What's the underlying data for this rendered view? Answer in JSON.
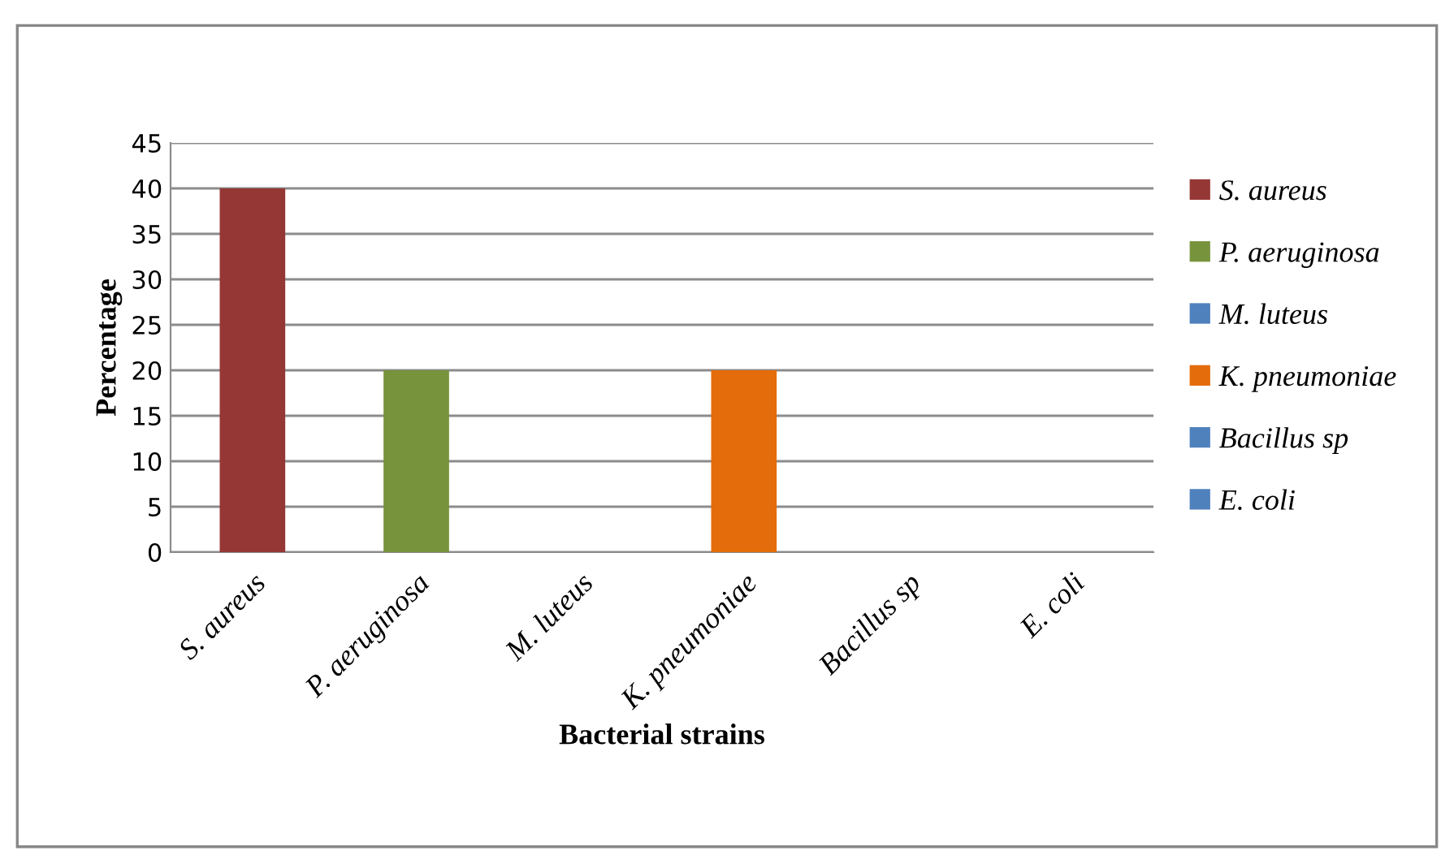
{
  "chart_data": {
    "type": "bar",
    "xlabel": "Bacterial strains",
    "ylabel": "Percentage",
    "categories": [
      "S. aureus",
      "P. aeruginosa",
      "M. luteus",
      "K. pneumoniae",
      "Bacillus sp",
      "E. coli"
    ],
    "series": [
      {
        "name": "S. aureus",
        "color": "#953735",
        "values": [
          40,
          null,
          null,
          null,
          null,
          null
        ]
      },
      {
        "name": "P. aeruginosa",
        "color": "#77933c",
        "values": [
          null,
          20,
          null,
          null,
          null,
          null
        ]
      },
      {
        "name": "M. luteus",
        "color": "#4f81bd",
        "values": [
          null,
          null,
          0,
          null,
          null,
          null
        ]
      },
      {
        "name": "K. pneumoniae",
        "color": "#e46c0a",
        "values": [
          null,
          null,
          null,
          20,
          null,
          null
        ]
      },
      {
        "name": "Bacillus sp",
        "color": "#4f81bd",
        "values": [
          null,
          null,
          null,
          null,
          0,
          null
        ]
      },
      {
        "name": "E. coli",
        "color": "#4f81bd",
        "values": [
          null,
          null,
          null,
          null,
          null,
          0
        ]
      }
    ],
    "ylim": [
      0,
      45
    ],
    "yticks": [
      0,
      5,
      10,
      15,
      20,
      25,
      30,
      35,
      40,
      45
    ],
    "grid": "y",
    "legend": "right"
  }
}
